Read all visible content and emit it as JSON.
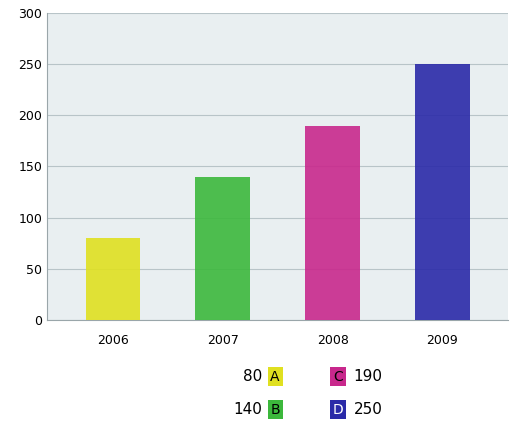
{
  "chart_data": {
    "type": "bar",
    "categories": [
      "2006",
      "2007",
      "2008",
      "2009"
    ],
    "values": [
      80,
      140,
      190,
      250
    ],
    "colors": [
      "#e0e020",
      "#3cb83c",
      "#c8288c",
      "#2a2aa8"
    ],
    "labels": [
      "A",
      "B",
      "C",
      "D"
    ],
    "ylim": [
      0,
      300
    ],
    "yticks": [
      0,
      50,
      100,
      150,
      200,
      250,
      300
    ],
    "grid": true
  }
}
